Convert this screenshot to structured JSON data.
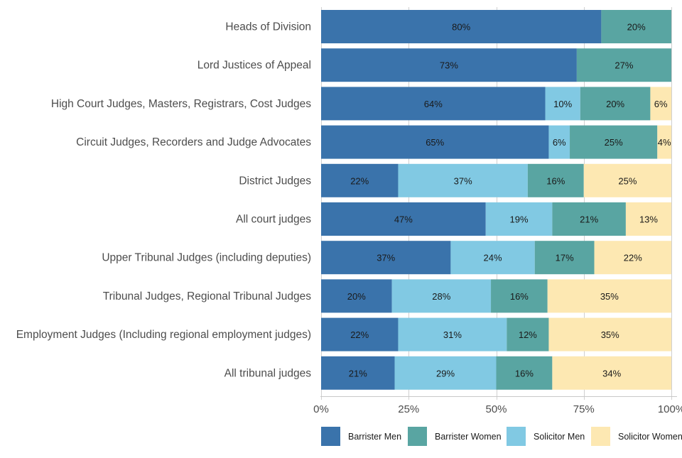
{
  "chart_data": {
    "type": "bar",
    "orientation": "horizontal",
    "stacked": true,
    "title": "",
    "xlabel": "",
    "ylabel": "",
    "xlim": [
      0,
      100
    ],
    "x_ticks": [
      "0%",
      "25%",
      "50%",
      "75%",
      "100%"
    ],
    "x_tick_values": [
      0,
      25,
      50,
      75,
      100
    ],
    "grid": true,
    "legend_position": "bottom",
    "categories": [
      "Heads of Division",
      "Lord Justices of Appeal",
      "High Court Judges, Masters, Registrars, Cost Judges",
      "Circuit Judges, Recorders and Judge Advocates",
      "District Judges",
      "All court judges",
      "Upper Tribunal Judges (including deputies) ",
      "Tribunal Judges, Regional Tribunal Judges",
      "Employment Judges (Including regional employment judges) ",
      "All tribunal judges"
    ],
    "stack_order": [
      "Barrister Men",
      "Solicitor Men",
      "Barrister Women",
      "Solicitor Women"
    ],
    "series": [
      {
        "name": "Barrister Men",
        "color": "#3a73ab",
        "values": [
          80,
          73,
          64,
          65,
          22,
          47,
          37,
          20,
          22,
          21
        ]
      },
      {
        "name": "Solicitor Men",
        "color": "#81c9e3",
        "values": [
          0,
          0,
          10,
          6,
          37,
          19,
          24,
          28,
          31,
          29
        ]
      },
      {
        "name": "Barrister Women",
        "color": "#59a5a2",
        "values": [
          20,
          27,
          20,
          25,
          16,
          21,
          17,
          16,
          12,
          16
        ]
      },
      {
        "name": "Solicitor Women",
        "color": "#fde8b2",
        "values": [
          0,
          0,
          6,
          4,
          25,
          13,
          22,
          35,
          35,
          34
        ]
      }
    ],
    "legend": [
      "Barrister Men",
      "Barrister Women",
      "Solicitor Men",
      "Solicitor Women"
    ]
  }
}
